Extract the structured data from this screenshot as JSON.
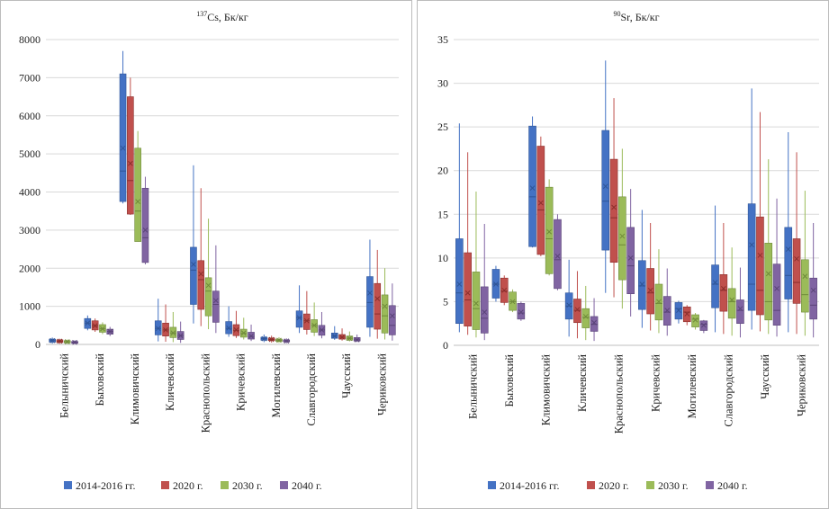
{
  "chart_data": [
    {
      "type": "box",
      "title": "¹³⁷Cs, Бк/кг",
      "title_sup": "137",
      "title_main": "Cs, Бк/кг",
      "ylim": [
        0,
        8000
      ],
      "yticks": [
        0,
        1000,
        2000,
        3000,
        4000,
        5000,
        6000,
        7000,
        8000
      ],
      "categories": [
        "Белыничский",
        "Быховский",
        "Климовичский",
        "Кличевский",
        "Краснопольский",
        "Кричевский",
        "Могилевский",
        "Славгородский",
        "Чаусский",
        "Чериковский"
      ],
      "series_names": [
        "2014-2016 гг.",
        "2020 г.",
        "2030 г.",
        "2040 г."
      ],
      "series_colors": [
        "#4472c4",
        "#c0504d",
        "#9bbb59",
        "#8064a2"
      ],
      "series_edge_colors": [
        "#2f5597",
        "#8b2f2c",
        "#6f8a3a",
        "#5a4478"
      ],
      "boxes": [
        [
          [
            20,
            60,
            100,
            140,
            180,
            100
          ],
          [
            15,
            50,
            85,
            120,
            150,
            85
          ],
          [
            10,
            40,
            70,
            100,
            130,
            70
          ],
          [
            8,
            30,
            55,
            80,
            110,
            55
          ]
        ],
        [
          [
            370,
            420,
            560,
            680,
            760,
            560
          ],
          [
            330,
            380,
            490,
            620,
            680,
            490
          ],
          [
            270,
            320,
            410,
            520,
            580,
            410
          ],
          [
            220,
            270,
            340,
            400,
            460,
            340
          ]
        ],
        [
          [
            3700,
            3750,
            4550,
            7100,
            7700,
            5150
          ],
          [
            3400,
            3420,
            4300,
            6500,
            7000,
            4750
          ],
          [
            2750,
            2700,
            3500,
            5150,
            5600,
            3750
          ],
          [
            2100,
            2150,
            2800,
            4100,
            4400,
            3000
          ]
        ],
        [
          [
            80,
            250,
            420,
            620,
            1200,
            420
          ],
          [
            70,
            220,
            380,
            560,
            1050,
            380
          ],
          [
            60,
            180,
            300,
            450,
            850,
            300
          ],
          [
            40,
            130,
            230,
            340,
            600,
            230
          ]
        ],
        [
          [
            550,
            1050,
            1950,
            2550,
            4700,
            2100
          ],
          [
            480,
            920,
            1700,
            2200,
            4100,
            1850
          ],
          [
            400,
            750,
            1400,
            1750,
            3300,
            1550
          ],
          [
            300,
            580,
            1050,
            1400,
            2600,
            1150
          ]
        ],
        [
          [
            200,
            280,
            420,
            600,
            1000,
            430
          ],
          [
            170,
            230,
            370,
            520,
            880,
            380
          ],
          [
            130,
            190,
            290,
            400,
            700,
            300
          ],
          [
            90,
            140,
            210,
            320,
            520,
            220
          ]
        ],
        [
          [
            60,
            110,
            150,
            190,
            260,
            150
          ],
          [
            50,
            100,
            130,
            170,
            230,
            130
          ],
          [
            40,
            80,
            110,
            140,
            190,
            110
          ],
          [
            30,
            65,
            90,
            120,
            160,
            90
          ]
        ],
        [
          [
            300,
            450,
            700,
            880,
            1550,
            700
          ],
          [
            260,
            390,
            620,
            800,
            1400,
            620
          ],
          [
            220,
            320,
            500,
            650,
            1100,
            500
          ],
          [
            160,
            240,
            380,
            500,
            850,
            380
          ]
        ],
        [
          [
            120,
            160,
            220,
            300,
            480,
            220
          ],
          [
            100,
            140,
            190,
            260,
            420,
            190
          ],
          [
            80,
            110,
            160,
            220,
            340,
            160
          ],
          [
            60,
            90,
            120,
            180,
            260,
            120
          ]
        ],
        [
          [
            200,
            450,
            1100,
            1780,
            2750,
            1350
          ],
          [
            150,
            400,
            800,
            1600,
            2480,
            1200
          ],
          [
            130,
            300,
            750,
            1300,
            2000,
            1000
          ],
          [
            100,
            250,
            500,
            1020,
            1600,
            750
          ]
        ]
      ]
    },
    {
      "type": "box",
      "title": "⁹⁰Sr, Бк/кг",
      "title_sup": "90",
      "title_main": "Sr, Бк/кг",
      "ylim": [
        0,
        35
      ],
      "yticks": [
        0,
        5,
        10,
        15,
        20,
        25,
        30,
        35
      ],
      "categories": [
        "Белыничский",
        "Быховский",
        "Климовичский",
        "Кличевский",
        "Краснопольский",
        "Кричевский",
        "Могилевский",
        "Славгородский",
        "Чаусский",
        "Чериковский"
      ],
      "series_names": [
        "2014-2016 гг.",
        "2020 г.",
        "2030 г.",
        "2040 г."
      ],
      "series_colors": [
        "#4472c4",
        "#c0504d",
        "#9bbb59",
        "#8064a2"
      ],
      "series_edge_colors": [
        "#2f5597",
        "#8b2f2c",
        "#6f8a3a",
        "#5a4478"
      ],
      "boxes": [
        [
          [
            1.5,
            2.5,
            6.0,
            12.2,
            25.4,
            7.0
          ],
          [
            1.2,
            2.2,
            5.2,
            10.6,
            22.1,
            6.0
          ],
          [
            0.9,
            1.8,
            4.2,
            8.4,
            17.6,
            4.8
          ],
          [
            0.6,
            1.4,
            3.1,
            6.7,
            13.9,
            3.8
          ]
        ],
        [
          [
            5.0,
            5.4,
            7.0,
            8.7,
            9.1,
            7.0
          ],
          [
            4.6,
            4.9,
            6.2,
            7.7,
            8.0,
            6.3
          ],
          [
            3.8,
            4.0,
            5.0,
            6.1,
            6.4,
            5.0
          ],
          [
            2.8,
            3.0,
            3.7,
            4.8,
            5.0,
            3.8
          ]
        ],
        [
          [
            11.2,
            11.3,
            17.0,
            25.1,
            26.2,
            18.0
          ],
          [
            10.2,
            10.4,
            15.5,
            22.8,
            23.9,
            16.3
          ],
          [
            8.0,
            8.2,
            12.2,
            18.1,
            19.0,
            13.0
          ],
          [
            6.3,
            6.5,
            9.8,
            14.4,
            15.0,
            10.2
          ]
        ],
        [
          [
            1.0,
            3.0,
            4.5,
            6.0,
            9.8,
            4.6
          ],
          [
            0.8,
            2.6,
            4.0,
            5.3,
            8.5,
            4.1
          ],
          [
            0.6,
            2.0,
            3.2,
            4.2,
            6.8,
            3.3
          ],
          [
            0.5,
            1.6,
            2.4,
            3.3,
            5.4,
            2.6
          ]
        ],
        [
          [
            6.0,
            10.9,
            16.5,
            24.6,
            32.6,
            18.2
          ],
          [
            5.5,
            9.5,
            14.6,
            21.3,
            28.3,
            15.8
          ],
          [
            4.2,
            7.5,
            11.5,
            17.0,
            22.5,
            12.5
          ],
          [
            3.3,
            5.9,
            9.1,
            13.5,
            17.9,
            10.0
          ]
        ],
        [
          [
            2.0,
            4.1,
            6.8,
            9.7,
            15.5,
            7.0
          ],
          [
            1.7,
            3.6,
            6.0,
            8.8,
            14.0,
            6.3
          ],
          [
            1.4,
            2.9,
            4.8,
            7.0,
            11.0,
            5.0
          ],
          [
            1.1,
            2.3,
            3.8,
            5.6,
            8.8,
            4.0
          ]
        ],
        [
          [
            2.5,
            3.0,
            4.2,
            4.9,
            5.1,
            4.0
          ],
          [
            2.3,
            2.7,
            3.8,
            4.4,
            4.6,
            3.6
          ],
          [
            1.8,
            2.1,
            3.0,
            3.5,
            3.7,
            2.9
          ],
          [
            1.4,
            1.7,
            2.4,
            2.8,
            2.9,
            2.3
          ]
        ],
        [
          [
            1.5,
            4.3,
            7.0,
            9.2,
            16.0,
            7.2
          ],
          [
            1.3,
            3.9,
            6.3,
            8.1,
            14.0,
            6.5
          ],
          [
            1.1,
            3.1,
            5.0,
            6.5,
            11.2,
            5.2
          ],
          [
            0.9,
            2.5,
            4.0,
            5.2,
            8.9,
            4.2
          ]
        ],
        [
          [
            1.8,
            4.0,
            7.0,
            16.2,
            29.4,
            11.5
          ],
          [
            1.6,
            3.5,
            6.3,
            14.7,
            26.7,
            10.3
          ],
          [
            1.3,
            2.9,
            5.0,
            11.7,
            21.3,
            8.2
          ],
          [
            1.0,
            2.3,
            4.0,
            9.3,
            16.8,
            6.5
          ]
        ],
        [
          [
            1.5,
            5.3,
            8.0,
            13.5,
            24.4,
            11.0
          ],
          [
            1.3,
            4.8,
            7.2,
            12.2,
            22.1,
            9.9
          ],
          [
            1.1,
            3.8,
            5.8,
            9.8,
            17.7,
            7.9
          ],
          [
            0.9,
            3.0,
            4.6,
            7.7,
            14.0,
            6.3
          ]
        ]
      ]
    }
  ]
}
